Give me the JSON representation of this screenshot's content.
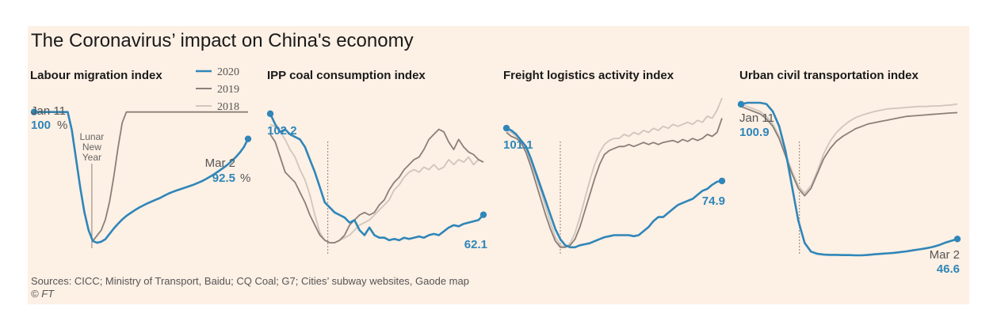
{
  "title": "The Coronavirus’ impact on China's economy",
  "source": "Sources: CICC; Ministry of Transport, Baidu; CQ Coal; G7; Cities’ subway websites, Gaode map",
  "credit": "© FT",
  "colors": {
    "y2020": "#2f86b8",
    "y2019": "#8b7f78",
    "y2018": "#cfc6bd",
    "background": "#fdf0e5",
    "marker": "#8b7f78"
  },
  "legend": [
    {
      "label": "2020",
      "color": "#2f86b8"
    },
    {
      "label": "2019",
      "color": "#8b7f78"
    },
    {
      "label": "2018",
      "color": "#cfc6bd"
    }
  ],
  "chart_data": [
    {
      "type": "line",
      "title": "Labour migration index",
      "ylim": [
        60,
        105
      ],
      "marker_label": "Lunar New Year",
      "start_annotation": {
        "date": "Jan 11",
        "value": "100",
        "unit": "%"
      },
      "end_annotation": {
        "date": "Mar 2",
        "value": "92.5",
        "unit": "%"
      },
      "series": [
        {
          "name": "2020",
          "values": [
            100,
            100,
            100,
            100,
            100,
            100,
            100,
            100,
            100,
            95,
            87,
            79,
            72,
            67,
            64,
            63.5,
            63.8,
            64.5,
            66,
            67.5,
            68.8,
            70,
            71,
            71.8,
            72.6,
            73.3,
            73.9,
            74.5,
            75,
            75.5,
            76,
            76.6,
            77.2,
            77.7,
            78.1,
            78.5,
            78.9,
            79.3,
            79.7,
            80.2,
            80.7,
            81.3,
            82,
            82.7,
            83.5,
            84.3,
            85.2,
            86.2,
            87.3,
            88.6,
            90.2,
            92.5
          ]
        },
        {
          "name": "2019",
          "values": [
            null,
            null,
            null,
            null,
            null,
            null,
            null,
            null,
            null,
            null,
            null,
            null,
            null,
            null,
            64,
            65.5,
            67,
            70,
            75,
            82,
            90,
            97,
            100,
            100,
            100,
            100,
            100,
            100,
            100,
            100,
            100,
            100,
            100,
            100,
            100,
            100,
            100,
            100,
            100,
            100,
            100,
            100,
            100,
            100,
            100,
            100,
            100,
            100,
            100,
            100,
            100,
            100
          ]
        }
      ]
    },
    {
      "type": "line",
      "title": "IPP coal consumption index",
      "ylim": [
        46,
        110
      ],
      "start_annotation": {
        "value": "102.2"
      },
      "end_annotation": {
        "value": "62.1"
      },
      "series": [
        {
          "name": "2020",
          "values": [
            102.2,
            98,
            95,
            96,
            94,
            93,
            92,
            89,
            84,
            79,
            73,
            67,
            65,
            63,
            62,
            61,
            59,
            60,
            56,
            54,
            57,
            54,
            53,
            53,
            52,
            52.5,
            52,
            53,
            52.5,
            53,
            53.5,
            53,
            54,
            54.5,
            54,
            55.5,
            57,
            58,
            57.5,
            58.5,
            59,
            59.5,
            60,
            62.1
          ]
        },
        {
          "name": "2019",
          "values": [
            94,
            91,
            85,
            79,
            77,
            75,
            71,
            67,
            62,
            58,
            54,
            52,
            51,
            51,
            52,
            54,
            58,
            60,
            62,
            63,
            62,
            63,
            66,
            68,
            72,
            75,
            77,
            80,
            82,
            84,
            85,
            88,
            92,
            94,
            96,
            95,
            91,
            88,
            92,
            89,
            87,
            86,
            84,
            83
          ]
        },
        {
          "name": "2018",
          "values": [
            98,
            97,
            95,
            92,
            88,
            85,
            80,
            76,
            70,
            62,
            55,
            52,
            51,
            51,
            52,
            53,
            54,
            56,
            58,
            59,
            60,
            62,
            64,
            66,
            68,
            72,
            74,
            77,
            79,
            80,
            79,
            81,
            80,
            82,
            80,
            81,
            84,
            82,
            84,
            83,
            85,
            82,
            84,
            83
          ]
        }
      ]
    },
    {
      "type": "line",
      "title": "Freight logistics activity index",
      "ylim": [
        38,
        118
      ],
      "start_annotation": {
        "value": "101.1"
      },
      "end_annotation": {
        "value": "74.9"
      },
      "series": [
        {
          "name": "2020",
          "values": [
            101.1,
            100,
            98,
            95,
            92,
            86,
            79,
            72,
            65,
            58,
            51,
            46,
            43,
            42,
            42,
            43,
            43.5,
            44,
            45,
            46,
            47,
            47.5,
            48,
            48,
            48,
            48,
            47.5,
            48,
            50,
            52,
            55,
            57,
            57,
            59,
            61,
            63,
            64,
            65,
            66,
            68,
            70,
            71,
            73,
            74.5,
            74.9
          ]
        },
        {
          "name": "2019",
          "values": [
            99,
            97,
            96,
            94,
            89,
            82,
            74,
            66,
            58,
            51,
            45,
            42,
            42,
            43,
            46,
            52,
            60,
            68,
            76,
            83,
            88,
            90,
            91,
            92,
            92,
            93,
            92,
            93,
            94,
            93,
            94,
            93,
            94,
            94.5,
            95,
            94,
            95.5,
            94.5,
            96,
            95,
            96,
            98,
            97,
            99,
            106
          ]
        },
        {
          "name": "2018",
          "values": [
            100,
            99,
            97,
            95,
            90,
            84,
            77,
            70,
            62,
            54,
            47,
            43,
            42,
            44,
            49,
            57,
            66,
            75,
            83,
            89,
            93,
            95,
            96,
            96,
            98,
            97,
            99,
            98,
            100,
            99,
            101,
            100,
            102,
            101,
            103,
            102,
            103,
            104,
            103,
            105,
            104,
            107,
            106,
            110,
            116
          ]
        }
      ]
    },
    {
      "type": "line",
      "title": "Urban civil transportation index",
      "ylim": [
        40,
        105
      ],
      "start_annotation": {
        "date": "Jan 11",
        "value": "100.9"
      },
      "end_annotation": {
        "date": "Mar 2",
        "value": "46.6"
      },
      "series": [
        {
          "name": "2020",
          "values": [
            100.9,
            101.5,
            101.5,
            101.5,
            101,
            98,
            92,
            82,
            68,
            54,
            45,
            41.5,
            40.6,
            40.3,
            40.2,
            40.2,
            40.1,
            40.1,
            40,
            40,
            40.2,
            40.4,
            40.6,
            40.8,
            41,
            41.3,
            41.6,
            42,
            42.4,
            42.8,
            43.3,
            44,
            45,
            45.8,
            46.6
          ]
        },
        {
          "name": "2019",
          "values": [
            100,
            99,
            98,
            97,
            95,
            92,
            87,
            80,
            73,
            67,
            64,
            67,
            73,
            79,
            83,
            86,
            88,
            89.5,
            91,
            92,
            93,
            93.5,
            94,
            94.5,
            95,
            95.5,
            96,
            96.2,
            96.4,
            96.6,
            96.8,
            97,
            97.2,
            97.4,
            97.5
          ]
        },
        {
          "name": "2018",
          "values": [
            101,
            100,
            99,
            98,
            96,
            93,
            88,
            81,
            74,
            68,
            65,
            68,
            74,
            81,
            86,
            89.5,
            92,
            94,
            95.5,
            96.5,
            97.3,
            98,
            98.5,
            99,
            99.2,
            99.4,
            99.6,
            99.8,
            100,
            100,
            100.2,
            100.2,
            100.4,
            100.6,
            101
          ]
        }
      ]
    }
  ]
}
